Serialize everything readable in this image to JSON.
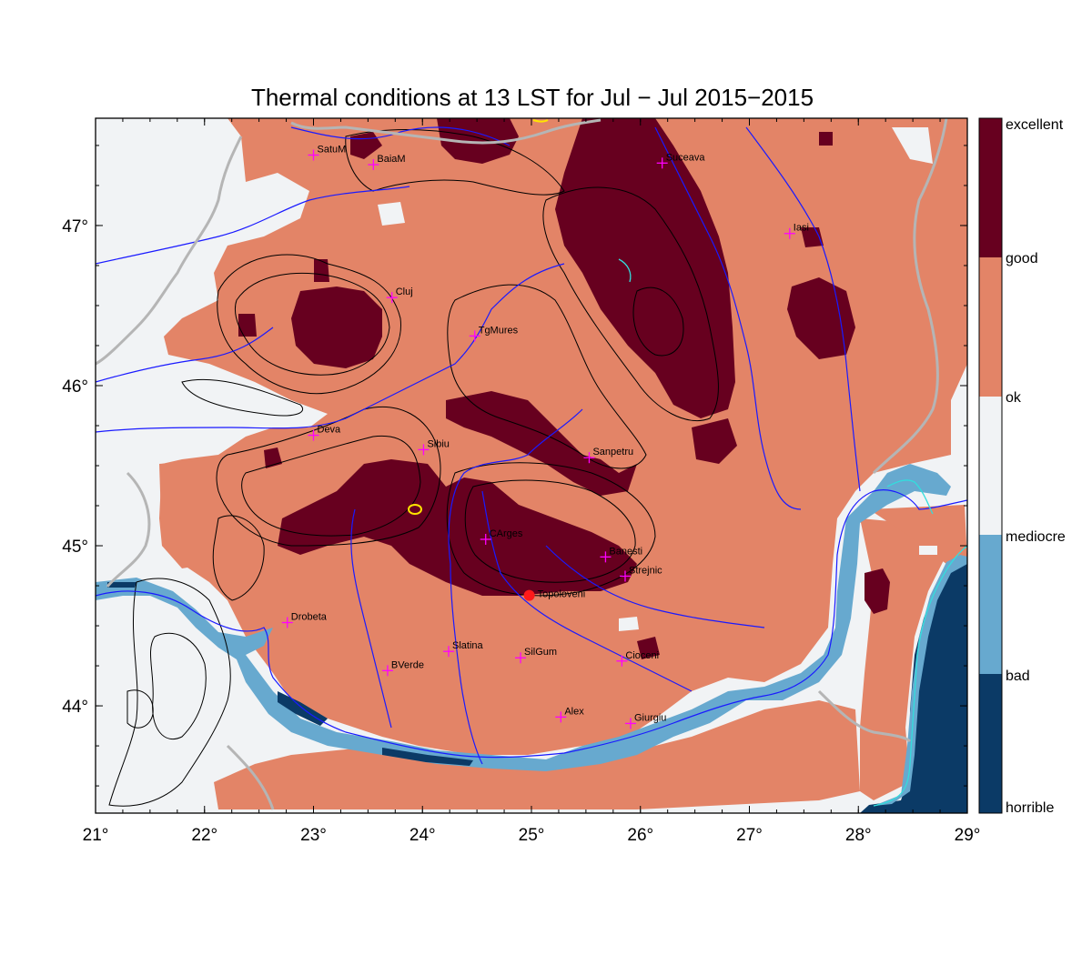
{
  "title": "Thermal conditions at 13 LST for Jul − Jul  2015−2015",
  "colors": {
    "excellent_good": "#67001f",
    "good_ok": "#e38467",
    "ok_mediocre": "#f1f3f5",
    "mediocre_bad": "#67a9cf",
    "bad_horrible": "#0b3a66",
    "rivers": "#1a1aff",
    "borders": "#b5b5b5",
    "coast": "#33dddd",
    "contours": "#000000",
    "city_marker": "#ff00ff",
    "highlight_marker": "#ff1a1a"
  },
  "map": {
    "lon_range": [
      21,
      29
    ],
    "lat_range": [
      43.33,
      47.67
    ],
    "lon_ticks": [
      {
        "value": 21,
        "label": "21°"
      },
      {
        "value": 22,
        "label": "22°"
      },
      {
        "value": 23,
        "label": "23°"
      },
      {
        "value": 24,
        "label": "24°"
      },
      {
        "value": 25,
        "label": "25°"
      },
      {
        "value": 26,
        "label": "26°"
      },
      {
        "value": 27,
        "label": "27°"
      },
      {
        "value": 28,
        "label": "28°"
      },
      {
        "value": 29,
        "label": "29°"
      }
    ],
    "lat_ticks": [
      {
        "value": 44,
        "label": "44°"
      },
      {
        "value": 45,
        "label": "45°"
      },
      {
        "value": 46,
        "label": "46°"
      },
      {
        "value": 47,
        "label": "47°"
      }
    ],
    "cities": [
      {
        "name": "SatuM",
        "lon": 23.0,
        "lat": 47.44
      },
      {
        "name": "BaiaM",
        "lon": 23.55,
        "lat": 47.38
      },
      {
        "name": "Suceava",
        "lon": 26.2,
        "lat": 47.39
      },
      {
        "name": "Iasi",
        "lon": 27.37,
        "lat": 46.95
      },
      {
        "name": "Cluj",
        "lon": 23.72,
        "lat": 46.55
      },
      {
        "name": "TgMures",
        "lon": 24.48,
        "lat": 46.31
      },
      {
        "name": "Deva",
        "lon": 23.0,
        "lat": 45.69
      },
      {
        "name": "Sibiu",
        "lon": 24.01,
        "lat": 45.6
      },
      {
        "name": "Sanpetru",
        "lon": 25.53,
        "lat": 45.55
      },
      {
        "name": "CArges",
        "lon": 24.58,
        "lat": 45.04
      },
      {
        "name": "Banesti",
        "lon": 25.68,
        "lat": 44.93
      },
      {
        "name": "Strejnic",
        "lon": 25.86,
        "lat": 44.81
      },
      {
        "name": "Drobeta",
        "lon": 22.76,
        "lat": 44.52
      },
      {
        "name": "Slatina",
        "lon": 24.24,
        "lat": 44.34
      },
      {
        "name": "SilGum",
        "lon": 24.9,
        "lat": 44.3
      },
      {
        "name": "Cioceni",
        "lon": 25.83,
        "lat": 44.28
      },
      {
        "name": "BVerde",
        "lon": 23.68,
        "lat": 44.22
      },
      {
        "name": "Alex",
        "lon": 25.27,
        "lat": 43.93
      },
      {
        "name": "Giurgiu",
        "lon": 25.91,
        "lat": 43.89
      }
    ],
    "highlight_city": {
      "name": "Topoloveni",
      "lon": 24.98,
      "lat": 44.69
    }
  },
  "legend": {
    "labels": [
      "excellent",
      "good",
      "ok",
      "mediocre",
      "bad",
      "horrible"
    ]
  }
}
